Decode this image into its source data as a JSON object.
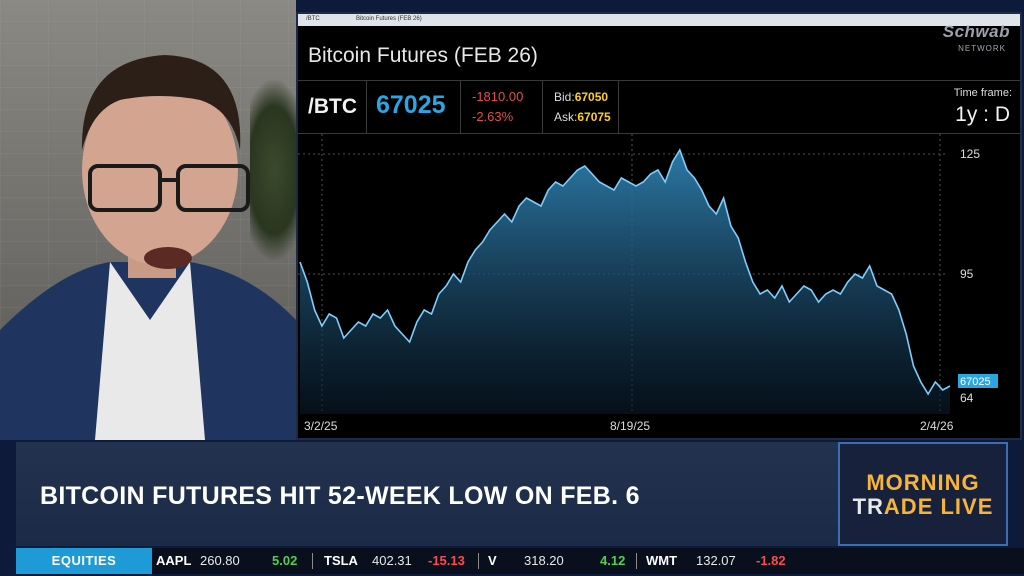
{
  "window": {
    "titlebar_path": "/BTC",
    "titlebar_caption": "Bitcoin Futures (FEB 26)"
  },
  "watermark": {
    "brand": "Schwab",
    "sub": "NETWORK"
  },
  "chart_header": {
    "title": "Bitcoin Futures (FEB 26)",
    "symbol": "/BTC",
    "last": "67025",
    "net_change": "-1810.00",
    "pct_change": "-2.63%",
    "bid_label": "Bid:",
    "bid": "67050",
    "ask_label": "Ask:",
    "ask": "67075",
    "timeframe_label": "Time frame:",
    "timeframe": "1y : D"
  },
  "chart_data": {
    "type": "area",
    "x_tick_labels": [
      "3/2/25",
      "8/19/25",
      "2/4/26"
    ],
    "y_tick_labels": [
      "125",
      "95",
      "64"
    ],
    "last_value_label": "67025",
    "ylim": [
      60,
      130
    ],
    "y_unit": "thousands USD",
    "values": [
      98,
      93,
      86,
      82,
      85,
      84,
      79,
      81,
      83,
      82,
      85,
      84,
      86,
      82,
      80,
      78,
      83,
      86,
      85,
      90,
      92,
      95,
      93,
      98,
      101,
      103,
      106,
      108,
      110,
      108,
      112,
      114,
      113,
      112,
      116,
      118,
      117,
      119,
      121,
      122,
      120,
      118,
      117,
      116,
      119,
      118,
      117,
      118,
      120,
      121,
      118,
      123,
      126,
      121,
      119,
      116,
      112,
      110,
      114,
      107,
      104,
      98,
      93,
      90,
      91,
      89,
      92,
      88,
      90,
      92,
      91,
      88,
      90,
      91,
      90,
      93,
      95,
      94,
      97,
      92,
      91,
      90,
      86,
      80,
      72,
      68,
      65,
      68,
      66,
      67
    ]
  },
  "colors": {
    "accent": "#29a6e3",
    "negative": "#e64c4c",
    "bid_ask": "#ffd21a",
    "logo": "#f6b43b"
  },
  "lower_third": {
    "headline": "BITCOIN FUTURES HIT 52-WEEK LOW ON FEB. 6",
    "logo_line1": "MORNING",
    "logo_line2_a": "TR",
    "logo_line2_b": "ADE LIVE"
  },
  "ticker": {
    "label": "EQUITIES",
    "items": [
      {
        "symbol": "AAPL",
        "price": "260.80",
        "change": "5.02",
        "dir": "up"
      },
      {
        "symbol": "TSLA",
        "price": "402.31",
        "change": "-15.13",
        "dir": "dn"
      },
      {
        "symbol": "V",
        "price": "318.20",
        "change": "4.12",
        "dir": "up"
      },
      {
        "symbol": "WMT",
        "price": "132.07",
        "change": "-1.82",
        "dir": "dn"
      }
    ]
  }
}
